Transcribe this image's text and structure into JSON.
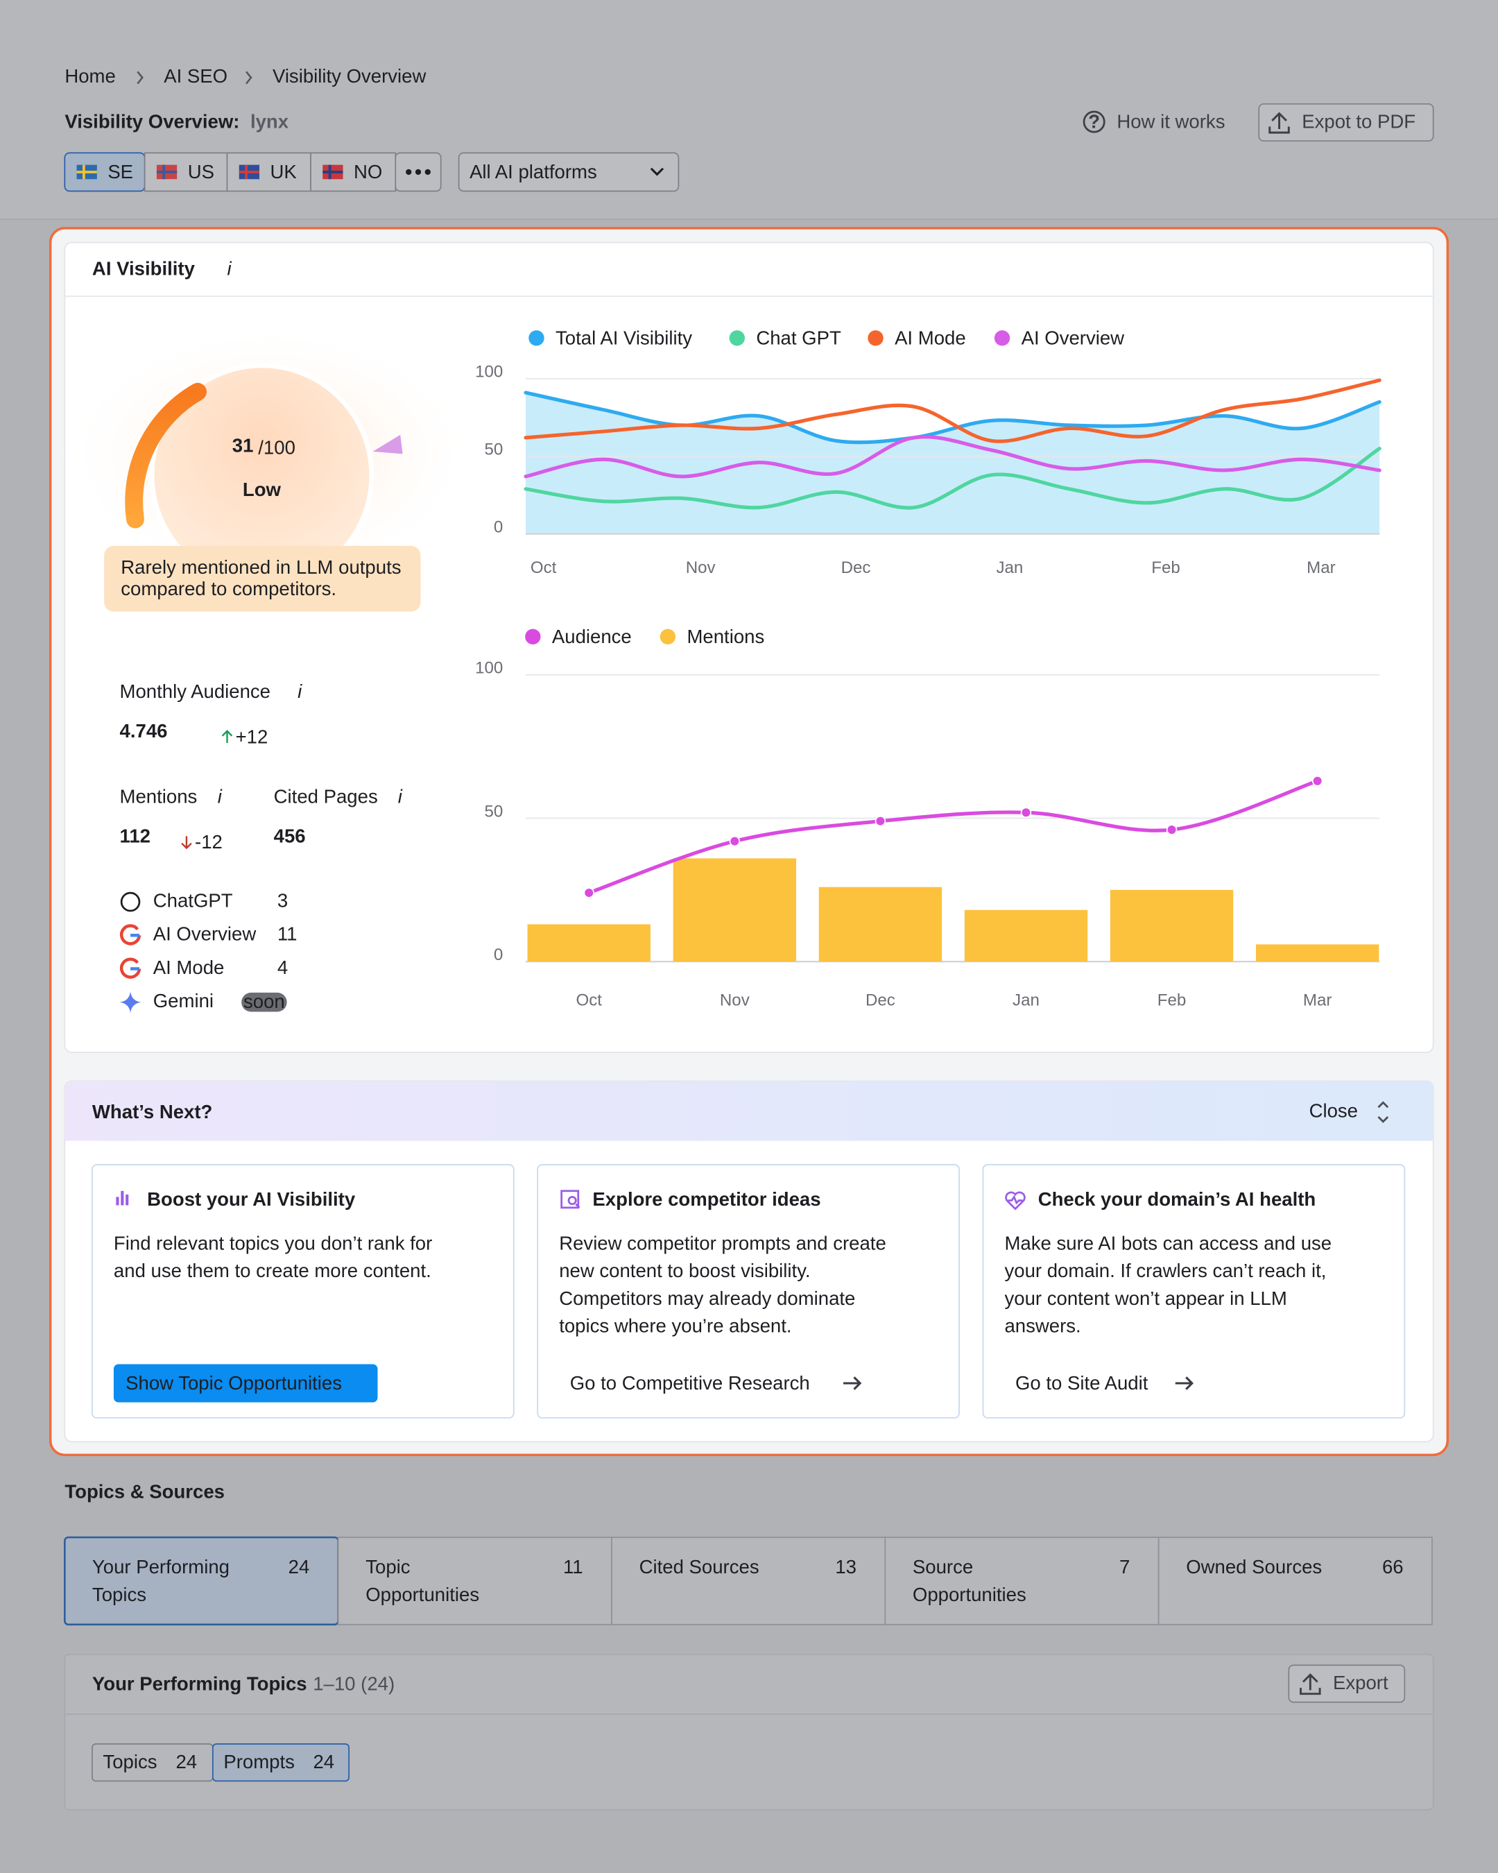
{
  "breadcrumb": [
    "Home",
    "AI SEO",
    "Visibility Overview"
  ],
  "header": {
    "title": "Visibility Overview:",
    "domain": "lynx",
    "help": "How it works",
    "export": "Expot to PDF"
  },
  "countries": [
    "SE",
    "US",
    "UK",
    "NO"
  ],
  "platform_filter": "All AI platforms",
  "visibility": {
    "title": "AI Visibility",
    "score": 31,
    "score_max": {
      "value": 100,
      "label": "/100"
    },
    "level": "Low",
    "note": [
      "Rarely mentioned in LLM outputs",
      "compared to competitors."
    ],
    "monthly_audience": {
      "label": "Monthly Audience",
      "value": "4.746",
      "change": "+12"
    },
    "mentions": {
      "label": "Mentions",
      "value": 112,
      "change": "-12"
    },
    "cited_pages": {
      "label": "Cited Pages",
      "value": 456
    },
    "platforms": [
      {
        "name": "ChatGPT",
        "count": 3
      },
      {
        "name": "AI Overview",
        "count": 11
      },
      {
        "name": "AI Mode",
        "count": 4
      },
      {
        "name": "Gemini",
        "badge": "soon"
      }
    ]
  },
  "chart_data": [
    {
      "type": "line",
      "categories": [
        "Oct",
        null,
        "Nov",
        null,
        "Dec",
        null,
        "Jan",
        null,
        "Feb",
        null,
        "Mar",
        null
      ],
      "ylim": [
        0,
        100
      ],
      "yticks": [
        0,
        50,
        100
      ],
      "grid": true,
      "series": [
        {
          "name": "Total AI Visibility",
          "color": "#2eaaf0",
          "area": true,
          "values": [
            91,
            80,
            70,
            76,
            60,
            62,
            73,
            70,
            70,
            76,
            68,
            85
          ]
        },
        {
          "name": "Chat GPT",
          "color": "#4fd6a0",
          "values": [
            29,
            21,
            23,
            17,
            27,
            17,
            38,
            29,
            20,
            29,
            23,
            55
          ]
        },
        {
          "name": "AI Mode",
          "color": "#f5642d",
          "values": [
            62,
            66,
            70,
            68,
            77,
            82,
            60,
            68,
            63,
            80,
            87,
            99
          ]
        },
        {
          "name": "AI Overview",
          "color": "#d75ce8",
          "values": [
            37,
            48,
            37,
            46,
            39,
            62,
            54,
            42,
            47,
            41,
            48,
            41
          ]
        }
      ]
    },
    {
      "type": "bar-line",
      "categories": [
        "Oct",
        "Nov",
        "Dec",
        "Jan",
        "Feb",
        "Mar"
      ],
      "ylim": [
        0,
        100
      ],
      "yticks": [
        0,
        50,
        100
      ],
      "grid": true,
      "series": [
        {
          "name": "Audience",
          "color": "#d94be0",
          "kind": "line",
          "values": [
            24,
            42,
            49,
            52,
            46,
            63
          ]
        },
        {
          "name": "Mentions",
          "color": "#fcc13d",
          "kind": "bar",
          "values": [
            13,
            36,
            26,
            18,
            25,
            6
          ]
        }
      ]
    }
  ],
  "whats_next": {
    "title": "What’s Next?",
    "close": "Close",
    "cards": [
      {
        "title": "Boost your AI Visibility",
        "body": [
          "Find relevant topics you don’t rank for",
          "and use them to create more content."
        ],
        "action": "Show Topic Opportunities"
      },
      {
        "title": "Explore competitor ideas",
        "body": [
          "Review competitor prompts and create",
          "new content to boost visibility.",
          "Competitors may already dominate",
          "topics where you’re absent."
        ],
        "action": "Go to Competitive Research"
      },
      {
        "title": "Check your domain’s AI health",
        "body": [
          "Make sure AI bots can access and use",
          "your domain. If crawlers can’t reach it,",
          "your content won’t appear in LLM",
          "answers."
        ],
        "action": "Go to Site Audit"
      }
    ]
  },
  "topics_sources": {
    "title": "Topics & Sources",
    "tabs": [
      {
        "label": [
          "Your Performing",
          "Topics"
        ],
        "count": 24
      },
      {
        "label": [
          "Topic",
          "Opportunities"
        ],
        "count": 11
      },
      {
        "label": [
          "Cited Sources"
        ],
        "count": 13
      },
      {
        "label": [
          "Source",
          "Opportunities"
        ],
        "count": 7
      },
      {
        "label": [
          "Owned Sources"
        ],
        "count": 66
      }
    ],
    "section": {
      "title": "Your Performing Topics",
      "range": "1–10 (24)",
      "export": "Export",
      "subtabs": [
        {
          "label": "Topics",
          "count": 24
        },
        {
          "label": "Prompts",
          "count": 24
        }
      ]
    }
  }
}
